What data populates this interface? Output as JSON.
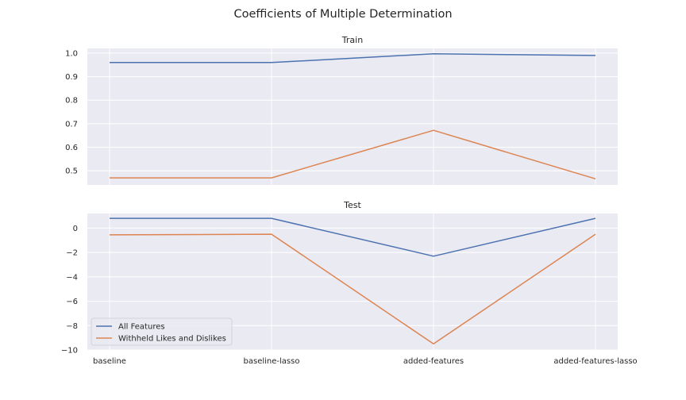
{
  "chart_data": {
    "type": "line",
    "title": "Coefficients of Multiple Determination",
    "categories": [
      "baseline",
      "baseline-lasso",
      "added-features",
      "added-features-lasso"
    ],
    "legend": {
      "location": "lower left",
      "entries": [
        "All Features",
        "Withheld Likes and Dislikes"
      ]
    },
    "grid": true,
    "colors": {
      "All Features": "#4c72b0",
      "Withheld Likes and Dislikes": "#dd8452",
      "background": "#eaeaf2",
      "grid": "#ffffff"
    },
    "panels": [
      {
        "title": "Train",
        "ylim": [
          0.44,
          1.02
        ],
        "yticks": [
          0.5,
          0.6,
          0.7,
          0.8,
          0.9,
          1.0
        ],
        "ytick_labels": [
          "0.5",
          "0.6",
          "0.7",
          "0.8",
          "0.9",
          "1.0"
        ],
        "series": [
          {
            "name": "All Features",
            "values": [
              0.96,
              0.96,
              0.997,
              0.99
            ]
          },
          {
            "name": "Withheld Likes and Dislikes",
            "values": [
              0.47,
              0.47,
              0.672,
              0.466
            ]
          }
        ]
      },
      {
        "title": "Test",
        "ylim": [
          -10.0,
          1.2
        ],
        "yticks": [
          -10,
          -8,
          -6,
          -4,
          -2,
          0
        ],
        "ytick_labels": [
          "−10",
          "−8",
          "−6",
          "−4",
          "−2",
          "0"
        ],
        "series": [
          {
            "name": "All Features",
            "values": [
              0.8,
              0.8,
              -2.3,
              0.8
            ]
          },
          {
            "name": "Withheld Likes and Dislikes",
            "values": [
              -0.55,
              -0.5,
              -9.5,
              -0.5
            ]
          }
        ]
      }
    ]
  }
}
